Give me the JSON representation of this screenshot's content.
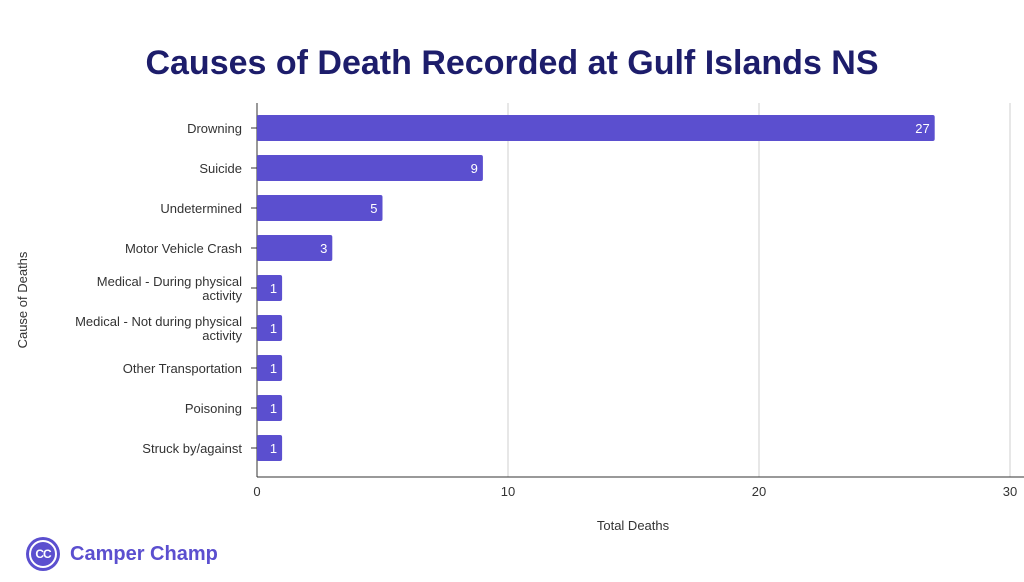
{
  "chart_data": {
    "type": "bar",
    "orientation": "horizontal",
    "title": "Causes of Death Recorded at Gulf Islands NS",
    "xlabel": "Total Deaths",
    "ylabel": "Cause of Deaths",
    "categories": [
      "Drowning",
      "Suicide",
      "Undetermined",
      "Motor Vehicle Crash",
      "Medical - During physical activity",
      "Medical - Not during physical activity",
      "Other Transportation",
      "Poisoning",
      "Struck by/against"
    ],
    "category_lines": [
      [
        "Drowning"
      ],
      [
        "Suicide"
      ],
      [
        "Undetermined"
      ],
      [
        "Motor Vehicle Crash"
      ],
      [
        "Medical - During physical",
        "activity"
      ],
      [
        "Medical - Not during physical",
        "activity"
      ],
      [
        "Other Transportation"
      ],
      [
        "Poisoning"
      ],
      [
        "Struck by/against"
      ]
    ],
    "values": [
      27,
      9,
      5,
      3,
      1,
      1,
      1,
      1,
      1
    ],
    "xlim": [
      0,
      30
    ],
    "xticks": [
      0,
      10,
      20,
      30
    ],
    "grid": true,
    "bar_color": "#5b4fcf",
    "data_labels": true
  },
  "brand": {
    "logo_text": "CC",
    "name": "Camper Champ",
    "color": "#5b4fcf"
  }
}
